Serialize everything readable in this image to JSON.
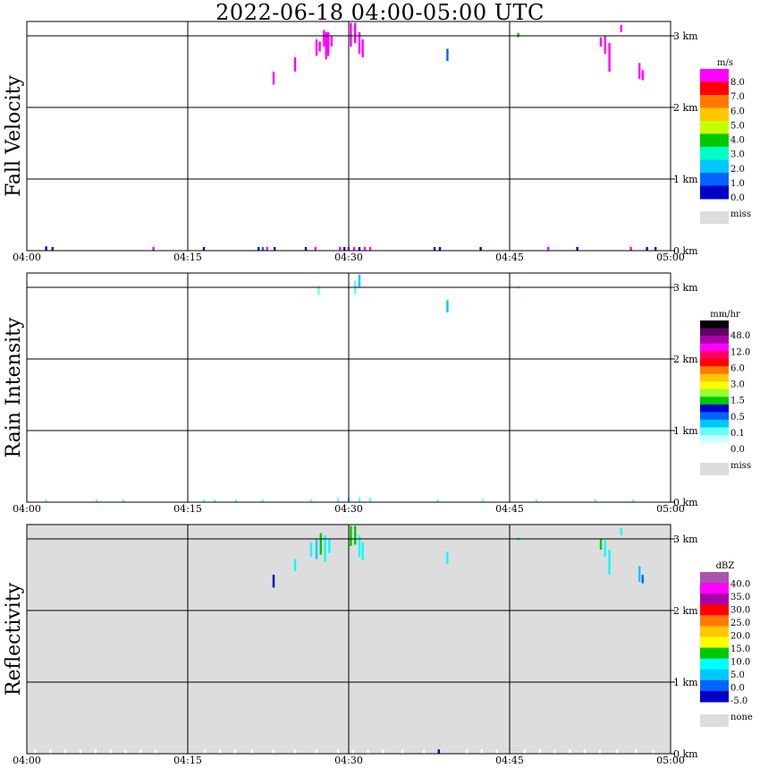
{
  "title": "2022-06-18   04:00-05:00 UTC",
  "chart_data": [
    {
      "type": "heatmap",
      "title": "Fall Velocity",
      "x_ticks": [
        "04:00",
        "04:15",
        "04:30",
        "04:45",
        "05:00"
      ],
      "y_ticks": [
        "0 km",
        "1 km",
        "2 km",
        "3 km"
      ],
      "ylim": [
        0,
        3.2
      ],
      "background": "#ffffff",
      "legend": {
        "unit": "m/s",
        "colors": [
          "#ff00ff",
          "#ff0000",
          "#ff7800",
          "#ffc800",
          "#c8ff00",
          "#00c800",
          "#00ffc8",
          "#00c8ff",
          "#0064ff",
          "#0000c8"
        ],
        "labels": [
          "8.0",
          "7.0",
          "6.0",
          "5.0",
          "4.0",
          "3.0",
          "2.0",
          "1.0",
          "0.0"
        ],
        "miss_label": "miss",
        "miss_color": "#dddddd"
      },
      "cells": [
        {
          "t": 27.0,
          "h0": 2.72,
          "h1": 2.95,
          "c": "#ff00ff"
        },
        {
          "t": 27.3,
          "h0": 2.78,
          "h1": 2.92,
          "c": "#ff00ff"
        },
        {
          "t": 27.7,
          "h0": 2.85,
          "h1": 3.08,
          "c": "#ff00ff"
        },
        {
          "t": 27.9,
          "h0": 2.67,
          "h1": 3.05,
          "c": "#ff00ff"
        },
        {
          "t": 28.1,
          "h0": 2.72,
          "h1": 3.05,
          "c": "#ff00ff"
        },
        {
          "t": 28.4,
          "h0": 2.85,
          "h1": 3.0,
          "c": "#ff00ff"
        },
        {
          "t": 25.0,
          "h0": 2.5,
          "h1": 2.7,
          "c": "#ff00ff"
        },
        {
          "t": 23.0,
          "h0": 2.32,
          "h1": 2.5,
          "c": "#ff00ff"
        },
        {
          "t": 30.2,
          "h0": 2.85,
          "h1": 3.18,
          "c": "#ff00ff"
        },
        {
          "t": 30.6,
          "h0": 2.9,
          "h1": 3.18,
          "c": "#ff00ff"
        },
        {
          "t": 31.0,
          "h0": 2.75,
          "h1": 3.05,
          "c": "#ff00ff"
        },
        {
          "t": 31.3,
          "h0": 2.7,
          "h1": 2.95,
          "c": "#ff00ff"
        },
        {
          "t": 39.2,
          "h0": 2.65,
          "h1": 2.82,
          "c": "#0064ff"
        },
        {
          "t": 45.8,
          "h0": 2.98,
          "h1": 3.04,
          "c": "#00c800"
        },
        {
          "t": 53.5,
          "h0": 2.85,
          "h1": 2.98,
          "c": "#ff00ff"
        },
        {
          "t": 53.9,
          "h0": 2.75,
          "h1": 3.0,
          "c": "#ff00ff"
        },
        {
          "t": 54.3,
          "h0": 2.5,
          "h1": 2.9,
          "c": "#ff00ff"
        },
        {
          "t": 55.4,
          "h0": 3.05,
          "h1": 3.15,
          "c": "#ff00ff"
        },
        {
          "t": 57.1,
          "h0": 2.4,
          "h1": 2.62,
          "c": "#ff00ff"
        },
        {
          "t": 57.4,
          "h0": 2.38,
          "h1": 2.52,
          "c": "#ff00ff"
        },
        {
          "t": 1.8,
          "h0": 0.0,
          "h1": 0.06,
          "c": "#0000c8"
        },
        {
          "t": 2.4,
          "h0": 0.0,
          "h1": 0.05,
          "c": "#0000c8"
        },
        {
          "t": 11.8,
          "h0": 0.0,
          "h1": 0.05,
          "c": "#ff00ff"
        },
        {
          "t": 16.5,
          "h0": 0.0,
          "h1": 0.05,
          "c": "#0000c8"
        },
        {
          "t": 21.6,
          "h0": 0.0,
          "h1": 0.05,
          "c": "#0000c8"
        },
        {
          "t": 22.0,
          "h0": 0.0,
          "h1": 0.05,
          "c": "#0064ff"
        },
        {
          "t": 22.4,
          "h0": 0.0,
          "h1": 0.05,
          "c": "#ff00ff"
        },
        {
          "t": 23.1,
          "h0": 0.0,
          "h1": 0.05,
          "c": "#0000c8"
        },
        {
          "t": 26.0,
          "h0": 0.0,
          "h1": 0.05,
          "c": "#0000c8"
        },
        {
          "t": 26.9,
          "h0": 0.0,
          "h1": 0.05,
          "c": "#ff00ff"
        },
        {
          "t": 29.2,
          "h0": 0.0,
          "h1": 0.05,
          "c": "#ff00ff"
        },
        {
          "t": 29.6,
          "h0": 0.0,
          "h1": 0.05,
          "c": "#0000c8"
        },
        {
          "t": 30.0,
          "h0": 0.0,
          "h1": 0.05,
          "c": "#ff00ff"
        },
        {
          "t": 30.5,
          "h0": 0.0,
          "h1": 0.05,
          "c": "#ff00ff"
        },
        {
          "t": 31.0,
          "h0": 0.0,
          "h1": 0.05,
          "c": "#0000c8"
        },
        {
          "t": 31.5,
          "h0": 0.0,
          "h1": 0.05,
          "c": "#ff00ff"
        },
        {
          "t": 32.0,
          "h0": 0.0,
          "h1": 0.05,
          "c": "#ff00ff"
        },
        {
          "t": 38.0,
          "h0": 0.0,
          "h1": 0.05,
          "c": "#0000c8"
        },
        {
          "t": 38.5,
          "h0": 0.0,
          "h1": 0.05,
          "c": "#0000c8"
        },
        {
          "t": 42.3,
          "h0": 0.0,
          "h1": 0.05,
          "c": "#0000c8"
        },
        {
          "t": 48.6,
          "h0": 0.0,
          "h1": 0.05,
          "c": "#ff00ff"
        },
        {
          "t": 51.3,
          "h0": 0.0,
          "h1": 0.05,
          "c": "#0000c8"
        },
        {
          "t": 56.3,
          "h0": 0.0,
          "h1": 0.05,
          "c": "#ff00ff"
        },
        {
          "t": 57.8,
          "h0": 0.0,
          "h1": 0.05,
          "c": "#0000c8"
        },
        {
          "t": 58.6,
          "h0": 0.0,
          "h1": 0.05,
          "c": "#0000c8"
        }
      ]
    },
    {
      "type": "heatmap",
      "title": "Rain Intensity",
      "x_ticks": [
        "04:00",
        "04:15",
        "04:30",
        "04:45",
        "05:00"
      ],
      "y_ticks": [
        "0 km",
        "1 km",
        "2 km",
        "3 km"
      ],
      "ylim": [
        0,
        3.2
      ],
      "background": "#ffffff",
      "legend": {
        "unit": "mm/hr",
        "colors": [
          "#000000",
          "#640064",
          "#aa00aa",
          "#ff00ff",
          "#ff0064",
          "#ff0000",
          "#ff7800",
          "#ffc800",
          "#ffff00",
          "#96ff32",
          "#00c800",
          "#0000c8",
          "#0064ff",
          "#00c8ff",
          "#64ffff",
          "#c8ffff",
          "#ffffff"
        ],
        "labels": [
          "48.0",
          "12.0",
          "6.0",
          "3.0",
          "1.5",
          "0.5",
          "0.1",
          "0.0"
        ],
        "miss_label": "miss",
        "miss_color": "#dddddd"
      },
      "cells": [
        {
          "t": 27.2,
          "h0": 2.9,
          "h1": 3.02,
          "c": "#64ffff"
        },
        {
          "t": 30.6,
          "h0": 2.9,
          "h1": 3.1,
          "c": "#64ffff"
        },
        {
          "t": 31.0,
          "h0": 3.0,
          "h1": 3.18,
          "c": "#00c8ff"
        },
        {
          "t": 39.2,
          "h0": 2.65,
          "h1": 2.82,
          "c": "#00c8ff"
        },
        {
          "t": 45.8,
          "h0": 2.98,
          "h1": 3.02,
          "c": "#64ffff"
        },
        {
          "t": 29.0,
          "h0": 0.0,
          "h1": 0.07,
          "c": "#64ffff"
        },
        {
          "t": 30.0,
          "h0": 0.0,
          "h1": 0.07,
          "c": "#64ffff"
        },
        {
          "t": 31.0,
          "h0": 0.0,
          "h1": 0.07,
          "c": "#64ffff"
        },
        {
          "t": 32.0,
          "h0": 0.0,
          "h1": 0.07,
          "c": "#64ffff"
        },
        {
          "t": 1.8,
          "h0": 0.0,
          "h1": 0.04,
          "c": "#64ffff"
        },
        {
          "t": 6.5,
          "h0": 0.0,
          "h1": 0.04,
          "c": "#64ffff"
        },
        {
          "t": 9.0,
          "h0": 0.0,
          "h1": 0.04,
          "c": "#64ffff"
        },
        {
          "t": 16.5,
          "h0": 0.0,
          "h1": 0.04,
          "c": "#64ffff"
        },
        {
          "t": 17.5,
          "h0": 0.0,
          "h1": 0.04,
          "c": "#64ffff"
        },
        {
          "t": 19.5,
          "h0": 0.0,
          "h1": 0.04,
          "c": "#64ffff"
        },
        {
          "t": 22.0,
          "h0": 0.0,
          "h1": 0.04,
          "c": "#64ffff"
        },
        {
          "t": 26.5,
          "h0": 0.0,
          "h1": 0.04,
          "c": "#64ffff"
        },
        {
          "t": 38.3,
          "h0": 0.0,
          "h1": 0.04,
          "c": "#64ffff"
        },
        {
          "t": 42.5,
          "h0": 0.0,
          "h1": 0.04,
          "c": "#64ffff"
        },
        {
          "t": 47.5,
          "h0": 0.0,
          "h1": 0.04,
          "c": "#64ffff"
        },
        {
          "t": 53.0,
          "h0": 0.0,
          "h1": 0.04,
          "c": "#64ffff"
        },
        {
          "t": 56.5,
          "h0": 0.0,
          "h1": 0.04,
          "c": "#64ffff"
        }
      ]
    },
    {
      "type": "heatmap",
      "title": "Reflectivity",
      "x_ticks": [
        "04:00",
        "04:15",
        "04:30",
        "04:45",
        "05:00"
      ],
      "y_ticks": [
        "0 km",
        "1 km",
        "2 km",
        "3 km"
      ],
      "ylim": [
        0,
        3.2
      ],
      "background": "#dddddd",
      "legend": {
        "unit": "dBZ",
        "colors": [
          "#aa55aa",
          "#ff00ff",
          "#aa00aa",
          "#ff0000",
          "#ff7800",
          "#ffc800",
          "#ffff00",
          "#00c800",
          "#00ffff",
          "#00c8ff",
          "#0064ff",
          "#0000c8"
        ],
        "labels": [
          "40.0",
          "35.0",
          "30.0",
          "25.0",
          "20.0",
          "15.0",
          "10.0",
          "5.0",
          "0.0",
          "-5.0"
        ],
        "miss_label": "none",
        "miss_color": "#dddddd"
      },
      "cells": [
        {
          "t": 26.5,
          "h0": 2.75,
          "h1": 2.95,
          "c": "#00ffff"
        },
        {
          "t": 27.0,
          "h0": 2.72,
          "h1": 3.0,
          "c": "#00c8ff"
        },
        {
          "t": 27.4,
          "h0": 2.78,
          "h1": 3.08,
          "c": "#00c800"
        },
        {
          "t": 27.8,
          "h0": 2.68,
          "h1": 3.05,
          "c": "#00ffff"
        },
        {
          "t": 28.2,
          "h0": 2.8,
          "h1": 3.0,
          "c": "#00ffff"
        },
        {
          "t": 25.0,
          "h0": 2.55,
          "h1": 2.72,
          "c": "#00ffff"
        },
        {
          "t": 23.0,
          "h0": 2.32,
          "h1": 2.5,
          "c": "#0000c8"
        },
        {
          "t": 30.2,
          "h0": 2.9,
          "h1": 3.18,
          "c": "#00c800"
        },
        {
          "t": 30.6,
          "h0": 2.92,
          "h1": 3.18,
          "c": "#00c800"
        },
        {
          "t": 31.0,
          "h0": 2.75,
          "h1": 3.05,
          "c": "#00ffff"
        },
        {
          "t": 31.3,
          "h0": 2.7,
          "h1": 2.95,
          "c": "#00ffff"
        },
        {
          "t": 39.2,
          "h0": 2.65,
          "h1": 2.82,
          "c": "#00ffff"
        },
        {
          "t": 45.8,
          "h0": 2.98,
          "h1": 3.02,
          "c": "#00ffff"
        },
        {
          "t": 53.5,
          "h0": 2.85,
          "h1": 3.0,
          "c": "#00c800"
        },
        {
          "t": 53.9,
          "h0": 2.75,
          "h1": 2.98,
          "c": "#00ffff"
        },
        {
          "t": 54.3,
          "h0": 2.5,
          "h1": 2.85,
          "c": "#00ffff"
        },
        {
          "t": 55.4,
          "h0": 3.05,
          "h1": 3.15,
          "c": "#00ffff"
        },
        {
          "t": 57.1,
          "h0": 2.4,
          "h1": 2.62,
          "c": "#00c8ff"
        },
        {
          "t": 57.4,
          "h0": 2.38,
          "h1": 2.5,
          "c": "#0064ff"
        },
        {
          "t": 0.8,
          "h0": 0.0,
          "h1": 0.06,
          "c": "#ffffff"
        },
        {
          "t": 2.2,
          "h0": 0.0,
          "h1": 0.06,
          "c": "#ffffff"
        },
        {
          "t": 3.6,
          "h0": 0.0,
          "h1": 0.06,
          "c": "#ffffff"
        },
        {
          "t": 5.0,
          "h0": 0.0,
          "h1": 0.06,
          "c": "#ffffff"
        },
        {
          "t": 6.4,
          "h0": 0.0,
          "h1": 0.06,
          "c": "#ffffff"
        },
        {
          "t": 7.8,
          "h0": 0.0,
          "h1": 0.06,
          "c": "#ffffff"
        },
        {
          "t": 9.2,
          "h0": 0.0,
          "h1": 0.06,
          "c": "#ffffff"
        },
        {
          "t": 10.6,
          "h0": 0.0,
          "h1": 0.06,
          "c": "#ffffff"
        },
        {
          "t": 12.0,
          "h0": 0.0,
          "h1": 0.06,
          "c": "#ffffff"
        },
        {
          "t": 16.6,
          "h0": 0.0,
          "h1": 0.06,
          "c": "#ffffff"
        },
        {
          "t": 18.0,
          "h0": 0.0,
          "h1": 0.06,
          "c": "#ffffff"
        },
        {
          "t": 19.4,
          "h0": 0.0,
          "h1": 0.06,
          "c": "#ffffff"
        },
        {
          "t": 21.0,
          "h0": 0.0,
          "h1": 0.06,
          "c": "#ffffff"
        },
        {
          "t": 23.0,
          "h0": 0.0,
          "h1": 0.06,
          "c": "#ffffff"
        },
        {
          "t": 25.0,
          "h0": 0.0,
          "h1": 0.06,
          "c": "#ffffff"
        },
        {
          "t": 27.0,
          "h0": 0.0,
          "h1": 0.06,
          "c": "#ffffff"
        },
        {
          "t": 29.0,
          "h0": 0.0,
          "h1": 0.06,
          "c": "#ffffff"
        },
        {
          "t": 30.4,
          "h0": 0.0,
          "h1": 0.06,
          "c": "#ffffff"
        },
        {
          "t": 31.8,
          "h0": 0.0,
          "h1": 0.06,
          "c": "#ffffff"
        },
        {
          "t": 33.2,
          "h0": 0.0,
          "h1": 0.06,
          "c": "#ffffff"
        },
        {
          "t": 35.0,
          "h0": 0.0,
          "h1": 0.06,
          "c": "#ffffff"
        },
        {
          "t": 37.0,
          "h0": 0.0,
          "h1": 0.06,
          "c": "#ffffff"
        },
        {
          "t": 38.4,
          "h0": 0.0,
          "h1": 0.06,
          "c": "#0000c8"
        },
        {
          "t": 41.0,
          "h0": 0.0,
          "h1": 0.06,
          "c": "#ffffff"
        },
        {
          "t": 42.4,
          "h0": 0.0,
          "h1": 0.06,
          "c": "#ffffff"
        },
        {
          "t": 43.8,
          "h0": 0.0,
          "h1": 0.06,
          "c": "#ffffff"
        },
        {
          "t": 46.4,
          "h0": 0.0,
          "h1": 0.06,
          "c": "#ffffff"
        },
        {
          "t": 47.8,
          "h0": 0.0,
          "h1": 0.06,
          "c": "#ffffff"
        },
        {
          "t": 49.2,
          "h0": 0.0,
          "h1": 0.06,
          "c": "#ffffff"
        },
        {
          "t": 50.6,
          "h0": 0.0,
          "h1": 0.06,
          "c": "#ffffff"
        },
        {
          "t": 52.0,
          "h0": 0.0,
          "h1": 0.06,
          "c": "#ffffff"
        },
        {
          "t": 53.4,
          "h0": 0.0,
          "h1": 0.06,
          "c": "#ffffff"
        },
        {
          "t": 55.0,
          "h0": 0.0,
          "h1": 0.06,
          "c": "#ffffff"
        },
        {
          "t": 56.8,
          "h0": 0.0,
          "h1": 0.06,
          "c": "#ffffff"
        },
        {
          "t": 58.4,
          "h0": 0.0,
          "h1": 0.06,
          "c": "#ffffff"
        }
      ]
    }
  ]
}
